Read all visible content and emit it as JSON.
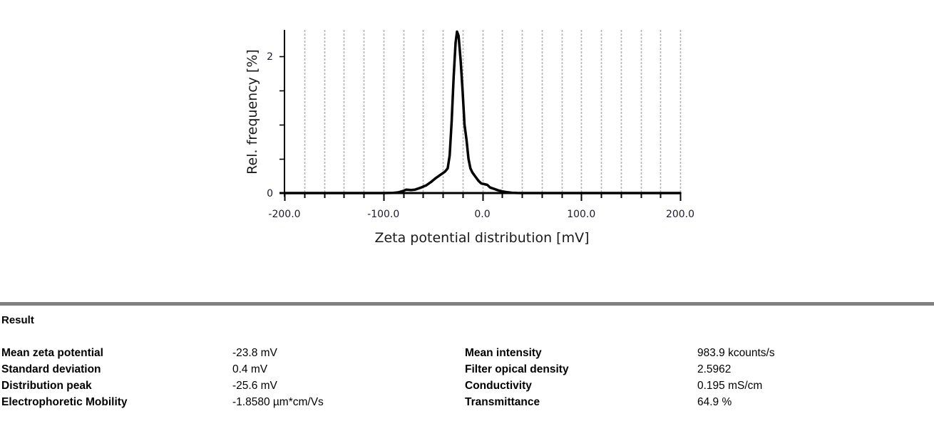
{
  "chart_data": {
    "type": "line",
    "title": "",
    "xlabel": "Zeta potential distribution [mV]",
    "ylabel": "Rel. frequency [%]",
    "xlim": [
      -200,
      200
    ],
    "ylim": [
      0,
      2.4
    ],
    "x_ticks": [
      -200,
      -100,
      0,
      100,
      200
    ],
    "x_tick_labels": [
      "-200.0",
      "-100.0",
      "0.0",
      "100.0",
      "200.0"
    ],
    "x_minor_step": 20,
    "y_ticks": [
      0,
      2
    ],
    "y_tick_labels": [
      "0",
      "2"
    ],
    "y_minor_step": 0.5,
    "grid": "vertical-dashed",
    "legend": "none",
    "series": [
      {
        "name": "Zeta potential distribution",
        "color": "#000000",
        "x": [
          -200,
          -100,
          -90,
          -85,
          -80,
          -77,
          -72,
          -68,
          -62,
          -57,
          -52,
          -47,
          -42,
          -38,
          -35,
          -33,
          -31,
          -29,
          -27,
          -25.6,
          -24,
          -22,
          -20,
          -18,
          -16,
          -14,
          -12,
          -10,
          -7,
          -4,
          -1,
          2,
          5,
          8,
          12,
          16,
          20,
          25,
          30,
          35,
          40,
          100,
          200
        ],
        "y": [
          0,
          0,
          0.002,
          0.01,
          0.03,
          0.05,
          0.045,
          0.05,
          0.08,
          0.11,
          0.16,
          0.22,
          0.27,
          0.31,
          0.36,
          0.55,
          1.05,
          1.7,
          2.2,
          2.36,
          2.3,
          1.95,
          1.5,
          1.0,
          0.78,
          0.5,
          0.36,
          0.3,
          0.24,
          0.18,
          0.14,
          0.13,
          0.12,
          0.08,
          0.06,
          0.04,
          0.025,
          0.012,
          0.004,
          0.001,
          0,
          0,
          0
        ]
      }
    ]
  },
  "result": {
    "title": "Result",
    "left": [
      {
        "label": "Mean zeta potential",
        "value": "-23.8 mV"
      },
      {
        "label": "Standard deviation",
        "value": "0.4 mV"
      },
      {
        "label": "Distribution peak",
        "value": "-25.6 mV"
      },
      {
        "label": "Electrophoretic Mobility",
        "value": "-1.8580 µm*cm/Vs"
      }
    ],
    "right": [
      {
        "label": "Mean intensity",
        "value": "983.9 kcounts/s"
      },
      {
        "label": "Filter opical density",
        "value": "2.5962"
      },
      {
        "label": "Conductivity",
        "value": "0.195 mS/cm"
      },
      {
        "label": "Transmittance",
        "value": "64.9 %"
      }
    ]
  }
}
